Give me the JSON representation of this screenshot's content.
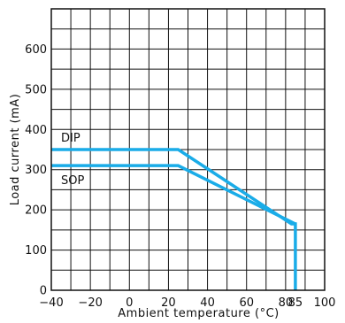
{
  "chart_data": {
    "type": "line",
    "xlabel": "Ambient temperature (°C)",
    "ylabel": "Load current (mA)",
    "xlim": [
      -40,
      100
    ],
    "ylim": [
      0,
      700
    ],
    "x_ticks": [
      -40,
      -20,
      0,
      20,
      40,
      60,
      80,
      100
    ],
    "x_tick_labels": [
      "−40",
      "−20",
      "0",
      "20",
      "40",
      "60",
      "80",
      "100"
    ],
    "x_extra_ticks": [
      85
    ],
    "x_extra_tick_labels": [
      "85"
    ],
    "y_ticks": [
      0,
      100,
      200,
      300,
      400,
      500,
      600
    ],
    "y_tick_labels": [
      "0",
      "100",
      "200",
      "300",
      "400",
      "500",
      "600"
    ],
    "grid": true,
    "series": [
      {
        "name": "DIP",
        "color": "#1aace8",
        "points": [
          [
            -40,
            350
          ],
          [
            25,
            350
          ],
          [
            83,
            165
          ],
          [
            85,
            165
          ],
          [
            85,
            0
          ]
        ]
      },
      {
        "name": "SOP",
        "color": "#1aace8",
        "points": [
          [
            -40,
            310
          ],
          [
            25,
            310
          ],
          [
            85,
            165
          ]
        ]
      }
    ]
  }
}
